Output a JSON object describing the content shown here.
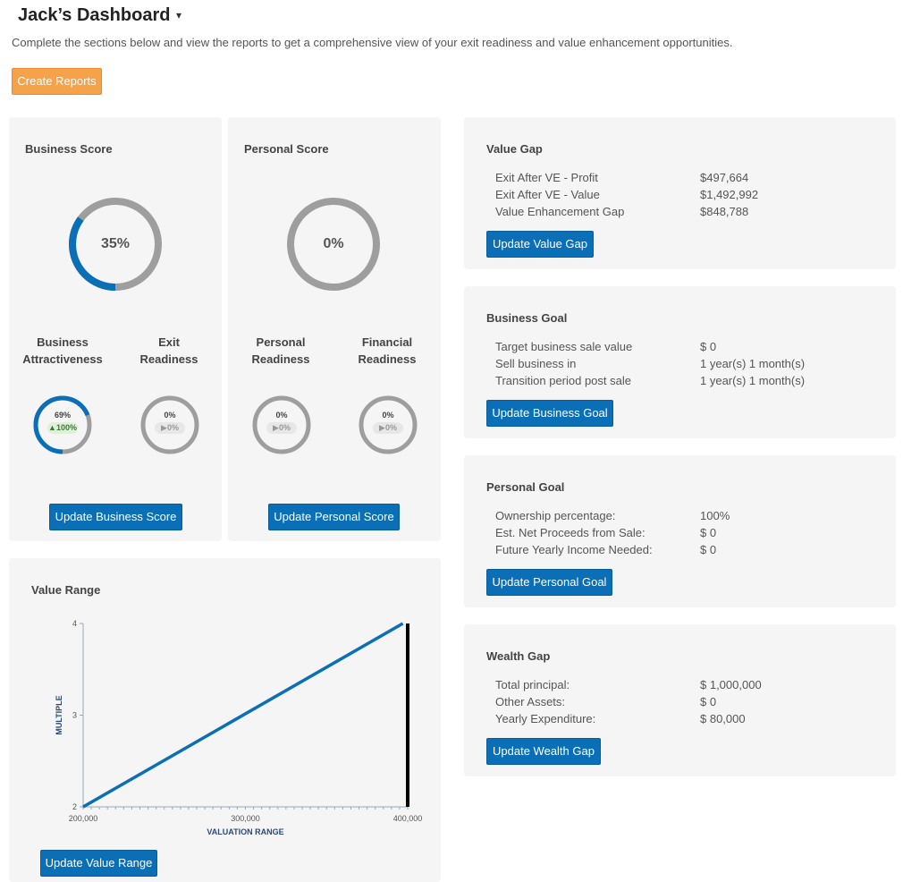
{
  "header": {
    "title": "Jack’s Dashboard",
    "subtitle": "Complete the sections below and view the reports to get a comprehensive view of your exit readiness and value enhancement opportunities.",
    "create_reports_label": "Create Reports"
  },
  "business_score": {
    "title": "Business Score",
    "value": "35%",
    "fraction": 0.35,
    "sub": [
      {
        "label_line1": "Business",
        "label_line2": "Attractiveness",
        "pct": "69%",
        "fraction": 0.69,
        "delta": "100%",
        "delta_dir": "up"
      },
      {
        "label_line1": "Exit",
        "label_line2": "Readiness",
        "pct": "0%",
        "fraction": 0,
        "delta": "0%",
        "delta_dir": "flat"
      }
    ],
    "button_label": "Update Business Score"
  },
  "personal_score": {
    "title": "Personal Score",
    "value": "0%",
    "fraction": 0,
    "sub": [
      {
        "label_line1": "Personal",
        "label_line2": "Readiness",
        "pct": "0%",
        "fraction": 0,
        "delta": "0%",
        "delta_dir": "flat"
      },
      {
        "label_line1": "Financial",
        "label_line2": "Readiness",
        "pct": "0%",
        "fraction": 0,
        "delta": "0%",
        "delta_dir": "flat"
      }
    ],
    "button_label": "Update Personal Score"
  },
  "value_range": {
    "title": "Value Range",
    "button_label": "Update Value Range"
  },
  "chart_data": {
    "type": "line",
    "title": "",
    "xlabel": "VALUATION RANGE",
    "ylabel": "MULTIPLE",
    "xlim": [
      200000,
      400000
    ],
    "ylim": [
      2,
      4
    ],
    "x_ticks": [
      "200,000",
      "300,000",
      "400,000"
    ],
    "y_ticks": [
      "2",
      "3",
      "4"
    ],
    "series": [
      {
        "x": [
          200000,
          397000
        ],
        "y": [
          2,
          4
        ],
        "color": "#0a6fb7"
      }
    ],
    "marker_x": 400000,
    "marker_color": "#000000"
  },
  "value_gap": {
    "title": "Value Gap",
    "rows": [
      {
        "label": "Exit After VE - Profit",
        "value": "$497,664"
      },
      {
        "label": "Exit After VE - Value",
        "value": "$1,492,992"
      },
      {
        "label": "Value Enhancement Gap",
        "value": "$848,788"
      }
    ],
    "button_label": "Update Value Gap"
  },
  "business_goal": {
    "title": "Business Goal",
    "rows": [
      {
        "label": "Target business sale value",
        "value": "$ 0"
      },
      {
        "label": "Sell business in",
        "value": "1 year(s) 1 month(s)"
      },
      {
        "label": "Transition period post sale",
        "value": "1 year(s) 1 month(s)"
      }
    ],
    "button_label": "Update Business Goal"
  },
  "personal_goal": {
    "title": "Personal Goal",
    "rows": [
      {
        "label": "Ownership percentage:",
        "value": "100%"
      },
      {
        "label": "Est. Net Proceeds from Sale:",
        "value": "$ 0"
      },
      {
        "label": "Future Yearly Income Needed:",
        "value": "$ 0"
      }
    ],
    "button_label": "Update Personal Goal"
  },
  "wealth_gap": {
    "title": "Wealth Gap",
    "rows": [
      {
        "label": "Total principal:",
        "value": "$ 1,000,000"
      },
      {
        "label": "Other Assets:",
        "value": "$ 0"
      },
      {
        "label": "Yearly Expenditure:",
        "value": "$ 80,000"
      }
    ],
    "button_label": "Update Wealth Gap"
  },
  "colors": {
    "ring_track": "#9e9e9e",
    "ring_fill": "#0a6fb7",
    "accent_orange": "#f5a24b",
    "button_blue": "#0a6fb7"
  },
  "icons": {
    "title_caret": "caret-down-icon",
    "delta_up": "triangle-up-icon",
    "delta_flat": "triangle-right-icon"
  }
}
